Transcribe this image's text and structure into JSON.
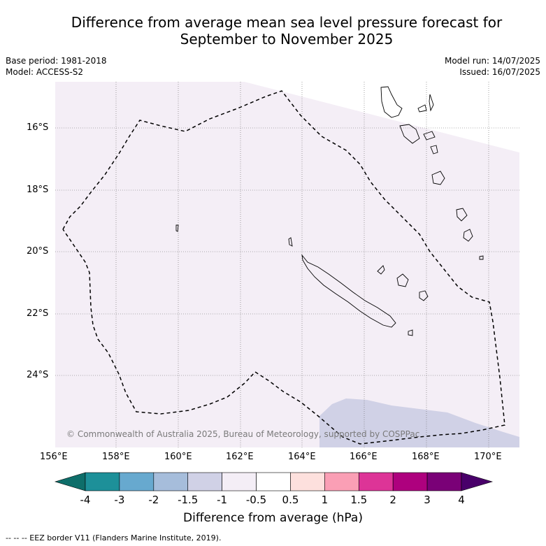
{
  "title_line1": "Difference from average mean sea level pressure forecast for",
  "title_line2": "September to November 2025",
  "meta": {
    "base_period": "Base period: 1981-2018",
    "model": "Model: ACCESS-S2",
    "model_run": "Model run: 14/07/2025",
    "issued": "Issued: 16/07/2025"
  },
  "copyright": "© Commonwealth of Australia 2025, Bureau of Meteorology, supported by COSPPac",
  "footnote": "-- -- -- EEZ border V11 (Flanders Marine Institute, 2019).",
  "axes": {
    "x_ticks": [
      "156°E",
      "158°E",
      "160°E",
      "162°E",
      "164°E",
      "166°E",
      "168°E",
      "170°E"
    ],
    "y_ticks": [
      "16°S",
      "18°S",
      "20°S",
      "22°S",
      "24°S"
    ]
  },
  "colorbar": {
    "label": "Difference from average (hPa)",
    "ticks": [
      "-4",
      "-3",
      "-2",
      "-1.5",
      "-1",
      "-0.5",
      "0.5",
      "1",
      "1.5",
      "2",
      "3",
      "4"
    ],
    "colors": [
      "#0e6e6a",
      "#1d9099",
      "#67a9cf",
      "#a6bddb",
      "#d0d1e6",
      "#f4eef6",
      "#ffffff",
      "#fde0dd",
      "#fa9fb5",
      "#dd3497",
      "#ae017e",
      "#7a0177",
      "#49006a"
    ]
  },
  "colors": {
    "background_field": "#f4eef6",
    "low_field": "#d0d1e6",
    "eez_line": "#000000",
    "gridline": "#666666"
  }
}
